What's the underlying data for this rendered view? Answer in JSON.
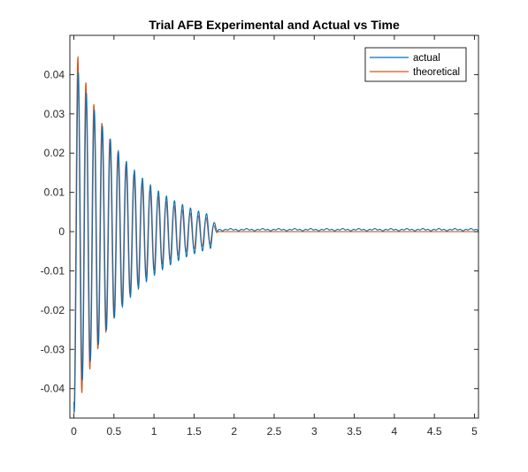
{
  "chart_data": {
    "type": "line",
    "title": "Trial AFB Experimental and Actual vs Time",
    "xlabel": "",
    "ylabel": "",
    "xlim": [
      -0.05,
      5.05
    ],
    "ylim": [
      -0.0475,
      0.05
    ],
    "xticks": [
      0,
      0.5,
      1,
      1.5,
      2,
      2.5,
      3,
      3.5,
      4,
      4.5,
      5
    ],
    "xtick_labels": [
      "0",
      "0.5",
      "1",
      "1.5",
      "2",
      "2.5",
      "3",
      "3.5",
      "4",
      "4.5",
      "5"
    ],
    "yticks": [
      -0.04,
      -0.03,
      -0.02,
      -0.01,
      0,
      0.01,
      0.02,
      0.03,
      0.04
    ],
    "ytick_labels": [
      "-0.04",
      "-0.03",
      "-0.02",
      "-0.01",
      "0",
      "0.01",
      "0.02",
      "0.03",
      "0.04"
    ],
    "grid": false,
    "legend_position": "top-right",
    "series": [
      {
        "name": "actual",
        "color": "#0072BD",
        "signal": {
          "kind": "decaying-oscillation",
          "period": 0.1,
          "start_value": -0.046,
          "first_peak": 0.0405,
          "last_peak": 0.004,
          "oscillation_end_time": 1.8,
          "steady_state": 0.0005,
          "steady_ripple": 0.0003,
          "phase_shift": 0.006
        }
      },
      {
        "name": "theoretical",
        "color": "#D95319",
        "signal": {
          "kind": "decaying-oscillation",
          "period": 0.1,
          "start_value": -0.0465,
          "first_peak": 0.0445,
          "last_peak": 0.003,
          "oscillation_end_time": 1.8,
          "steady_state": 0.0,
          "steady_ripple": 0.0,
          "phase_shift": 0.0
        }
      }
    ]
  }
}
